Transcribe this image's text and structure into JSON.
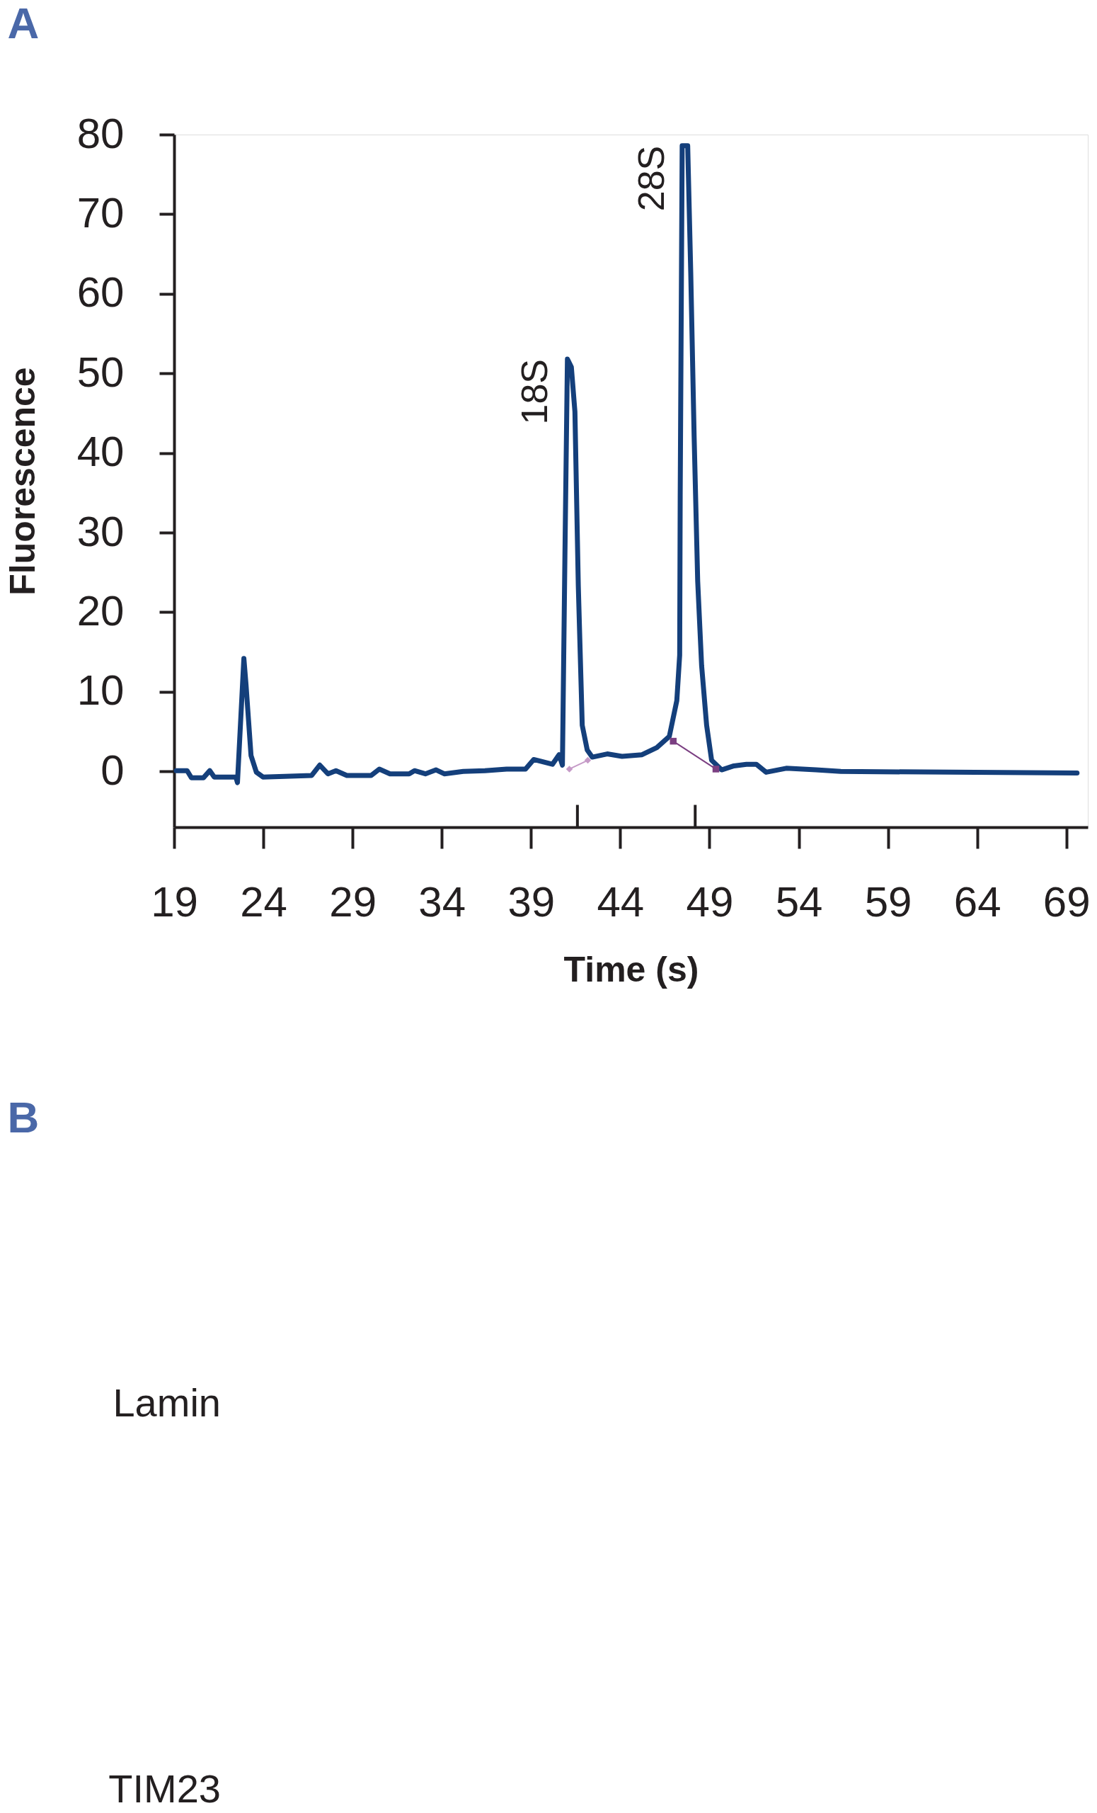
{
  "chart_data": [
    {
      "type": "line",
      "xlabel": "Time (s)",
      "ylabel": "Fluorescence",
      "xlim": [
        19,
        70.2
      ],
      "ylim": [
        -7,
        80
      ],
      "xticks": [
        19,
        24,
        29,
        34,
        39,
        44,
        49,
        54,
        59,
        64,
        69
      ],
      "yticks": [
        0,
        10,
        20,
        30,
        40,
        50,
        60,
        70,
        80
      ],
      "series": [
        {
          "color": "#143f7b",
          "x": [
            19.12,
            19.73,
            19.97,
            20.64,
            21.0,
            21.25,
            22.46,
            22.55,
            22.91,
            23.03,
            23.31,
            23.61,
            23.98,
            26.71,
            27.16,
            27.62,
            28.07,
            28.68,
            30.04,
            30.5,
            31.1,
            32.17,
            32.47,
            33.08,
            33.68,
            34.14,
            35.2,
            36.42,
            37.63,
            38.69,
            39.15,
            40.2,
            40.57,
            40.76,
            40.9,
            41.04,
            41.26,
            41.46,
            41.65,
            41.87,
            42.15,
            42.43,
            43.27,
            44.1,
            45.22,
            46.05,
            46.75,
            47.17,
            47.33,
            47.36,
            47.47,
            47.78,
            47.95,
            48.14,
            48.34,
            48.56,
            48.84,
            49.12,
            49.68,
            50.37,
            51.07,
            51.63,
            52.18,
            53.3,
            54.97,
            56.36,
            69.6
          ],
          "values": [
            0.1,
            0.1,
            -0.8,
            -0.8,
            0.1,
            -0.7,
            -0.7,
            -1.4,
            14.2,
            10.9,
            2.0,
            -0.1,
            -0.7,
            -0.5,
            0.8,
            -0.3,
            0.1,
            -0.5,
            -0.5,
            0.3,
            -0.3,
            -0.3,
            0.1,
            -0.3,
            0.2,
            -0.3,
            0.0,
            0.1,
            0.3,
            0.3,
            1.5,
            0.9,
            2.1,
            0.8,
            27.1,
            51.8,
            50.8,
            45.2,
            23.3,
            5.8,
            2.7,
            1.8,
            2.2,
            1.9,
            2.1,
            3.0,
            4.4,
            8.9,
            14.6,
            34.6,
            78.6,
            78.6,
            62.7,
            42.1,
            23.9,
            13.3,
            5.8,
            1.4,
            0.2,
            0.7,
            0.9,
            0.9,
            -0.1,
            0.4,
            0.2,
            0.0,
            -0.2
          ]
        },
        {
          "color": "#c59ac7",
          "marker": "diamond",
          "x": [
            41.15,
            42.18
          ],
          "values": [
            0.3,
            1.4
          ]
        },
        {
          "color": "#7b3f82",
          "marker": "square",
          "x": [
            46.97,
            49.36
          ],
          "values": [
            3.8,
            0.3
          ]
        },
        {
          "color": "#231f20",
          "x": [
            41.6,
            41.6
          ],
          "values": [
            -7,
            -4.2
          ]
        },
        {
          "color": "#231f20",
          "x": [
            48.2,
            48.2
          ],
          "values": [
            -7,
            -4.2
          ]
        }
      ],
      "annotations": [
        "A",
        {
          "text": "18S",
          "x": 41.04,
          "y": 51.8
        },
        {
          "text": "28S",
          "x": 47.6,
          "y": 78.6
        }
      ]
    },
    {
      "type": "other",
      "annotations": [
        "B",
        "Lamin",
        "TIM23"
      ]
    }
  ]
}
